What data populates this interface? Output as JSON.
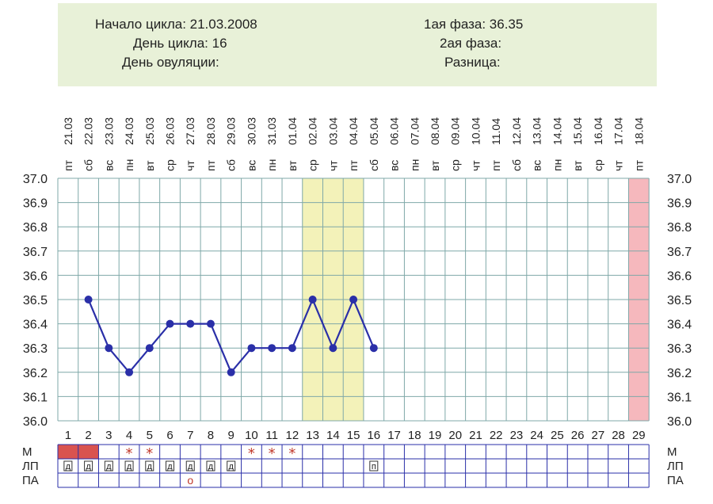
{
  "header": {
    "cycle_start": "Начало цикла: 21.03.2008",
    "cycle_day": "День цикла: 16",
    "ovulation_day": "День овуляции:",
    "phase1": "1ая фаза: 36.35",
    "phase2": "2ая фаза:",
    "difference": "Разница:"
  },
  "chart_data": {
    "type": "line",
    "dates": [
      "21.03",
      "22.03",
      "23.03",
      "24.03",
      "25.03",
      "26.03",
      "27.03",
      "28.03",
      "29.03",
      "30.03",
      "31.03",
      "01.04",
      "02.04",
      "03.04",
      "04.04",
      "05.04",
      "06.04",
      "07.04",
      "08.04",
      "09.04",
      "10.04",
      "11.04",
      "12.04",
      "13.04",
      "14.04",
      "15.04",
      "16.04",
      "17.04",
      "18.04"
    ],
    "weekdays": [
      "пт",
      "сб",
      "вс",
      "пн",
      "вт",
      "ср",
      "чт",
      "пт",
      "сб",
      "вс",
      "пн",
      "вт",
      "ср",
      "чт",
      "пт",
      "сб",
      "вс",
      "пн",
      "вт",
      "ср",
      "чт",
      "пт",
      "сб",
      "вс",
      "пн",
      "вт",
      "ср",
      "чт",
      "пт"
    ],
    "days": [
      1,
      2,
      3,
      4,
      5,
      6,
      7,
      8,
      9,
      10,
      11,
      12,
      13,
      14,
      15,
      16,
      17,
      18,
      19,
      20,
      21,
      22,
      23,
      24,
      25,
      26,
      27,
      28,
      29
    ],
    "ylim": [
      36.0,
      37.0
    ],
    "y_ticks": [
      "37.0",
      "36.9",
      "36.8",
      "36.7",
      "36.6",
      "36.5",
      "36.4",
      "36.3",
      "36.2",
      "36.1",
      "36.0"
    ],
    "temperature_start_day": 2,
    "temperatures": [
      36.5,
      36.3,
      36.2,
      36.3,
      36.4,
      36.4,
      36.4,
      36.2,
      36.3,
      36.3,
      36.3,
      36.5,
      36.3,
      36.5,
      36.3
    ],
    "highlight_days": [
      13,
      14,
      15
    ],
    "highlight_color": "#f3f2b9",
    "marked_day": 29,
    "marked_color": "#f6b8bd",
    "grid": true,
    "line_color": "#2a2fa8",
    "grid_color": "#7fa8a8",
    "rows": [
      {
        "label": "М",
        "cells": [
          "fill",
          "fill",
          "",
          "*",
          "*",
          "",
          "",
          "",
          "",
          "*",
          "*",
          "*",
          "",
          "",
          "",
          "",
          "",
          "",
          "",
          "",
          "",
          "",
          "",
          "",
          "",
          "",
          "",
          "",
          ""
        ]
      },
      {
        "label": "ЛП",
        "cells": [
          "д",
          "д",
          "д",
          "д",
          "д",
          "д",
          "д",
          "д",
          "д",
          "",
          "",
          "",
          "",
          "",
          "",
          "п",
          "",
          "",
          "",
          "",
          "",
          "",
          "",
          "",
          "",
          "",
          "",
          "",
          ""
        ]
      },
      {
        "label": "ПА",
        "cells": [
          "",
          "",
          "",
          "",
          "",
          "",
          "о",
          "",
          "",
          "",
          "",
          "",
          "",
          "",
          "",
          "",
          "",
          "",
          "",
          "",
          "",
          "",
          "",
          "",
          "",
          "",
          "",
          "",
          ""
        ]
      }
    ],
    "menstruation_color": "#d9534f",
    "symbol_star_color": "#c0392b"
  }
}
